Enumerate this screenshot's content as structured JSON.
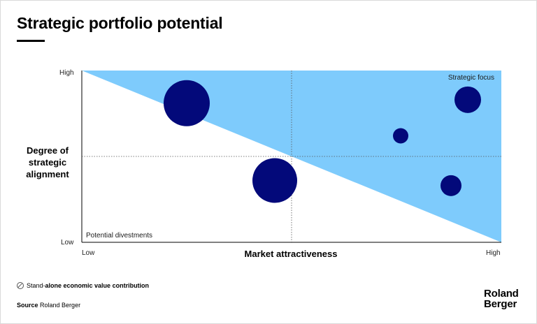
{
  "title": "Strategic portfolio potential",
  "legend_note": {
    "prefix": "Stand-",
    "bold": "alone economic value contribution",
    "icon": "bubble-size-icon"
  },
  "source": {
    "label": "Source",
    "text": "Roland Berger"
  },
  "logo": {
    "line1": "Roland",
    "line2": "Berger"
  },
  "colors": {
    "region": "#7ecbfc",
    "bubble": "#03097a",
    "divider": "#555555"
  },
  "chart_data": {
    "type": "scatter",
    "xlabel": "Market attractiveness",
    "ylabel": "Degree of strategic alignment",
    "x_ticks": [
      "Low",
      "High"
    ],
    "y_ticks": [
      "High",
      "Low"
    ],
    "xlim": [
      0,
      100
    ],
    "ylim": [
      0,
      100
    ],
    "dividers": {
      "x": 50,
      "y": 50
    },
    "region_labels": {
      "top_right": "Strategic focus",
      "bottom_left": "Potential divestments"
    },
    "points": [
      {
        "x": 25,
        "y": 81,
        "size": 33
      },
      {
        "x": 76,
        "y": 62,
        "size": 11
      },
      {
        "x": 92,
        "y": 83,
        "size": 19
      },
      {
        "x": 46,
        "y": 36,
        "size": 32
      },
      {
        "x": 88,
        "y": 33,
        "size": 15
      }
    ]
  }
}
